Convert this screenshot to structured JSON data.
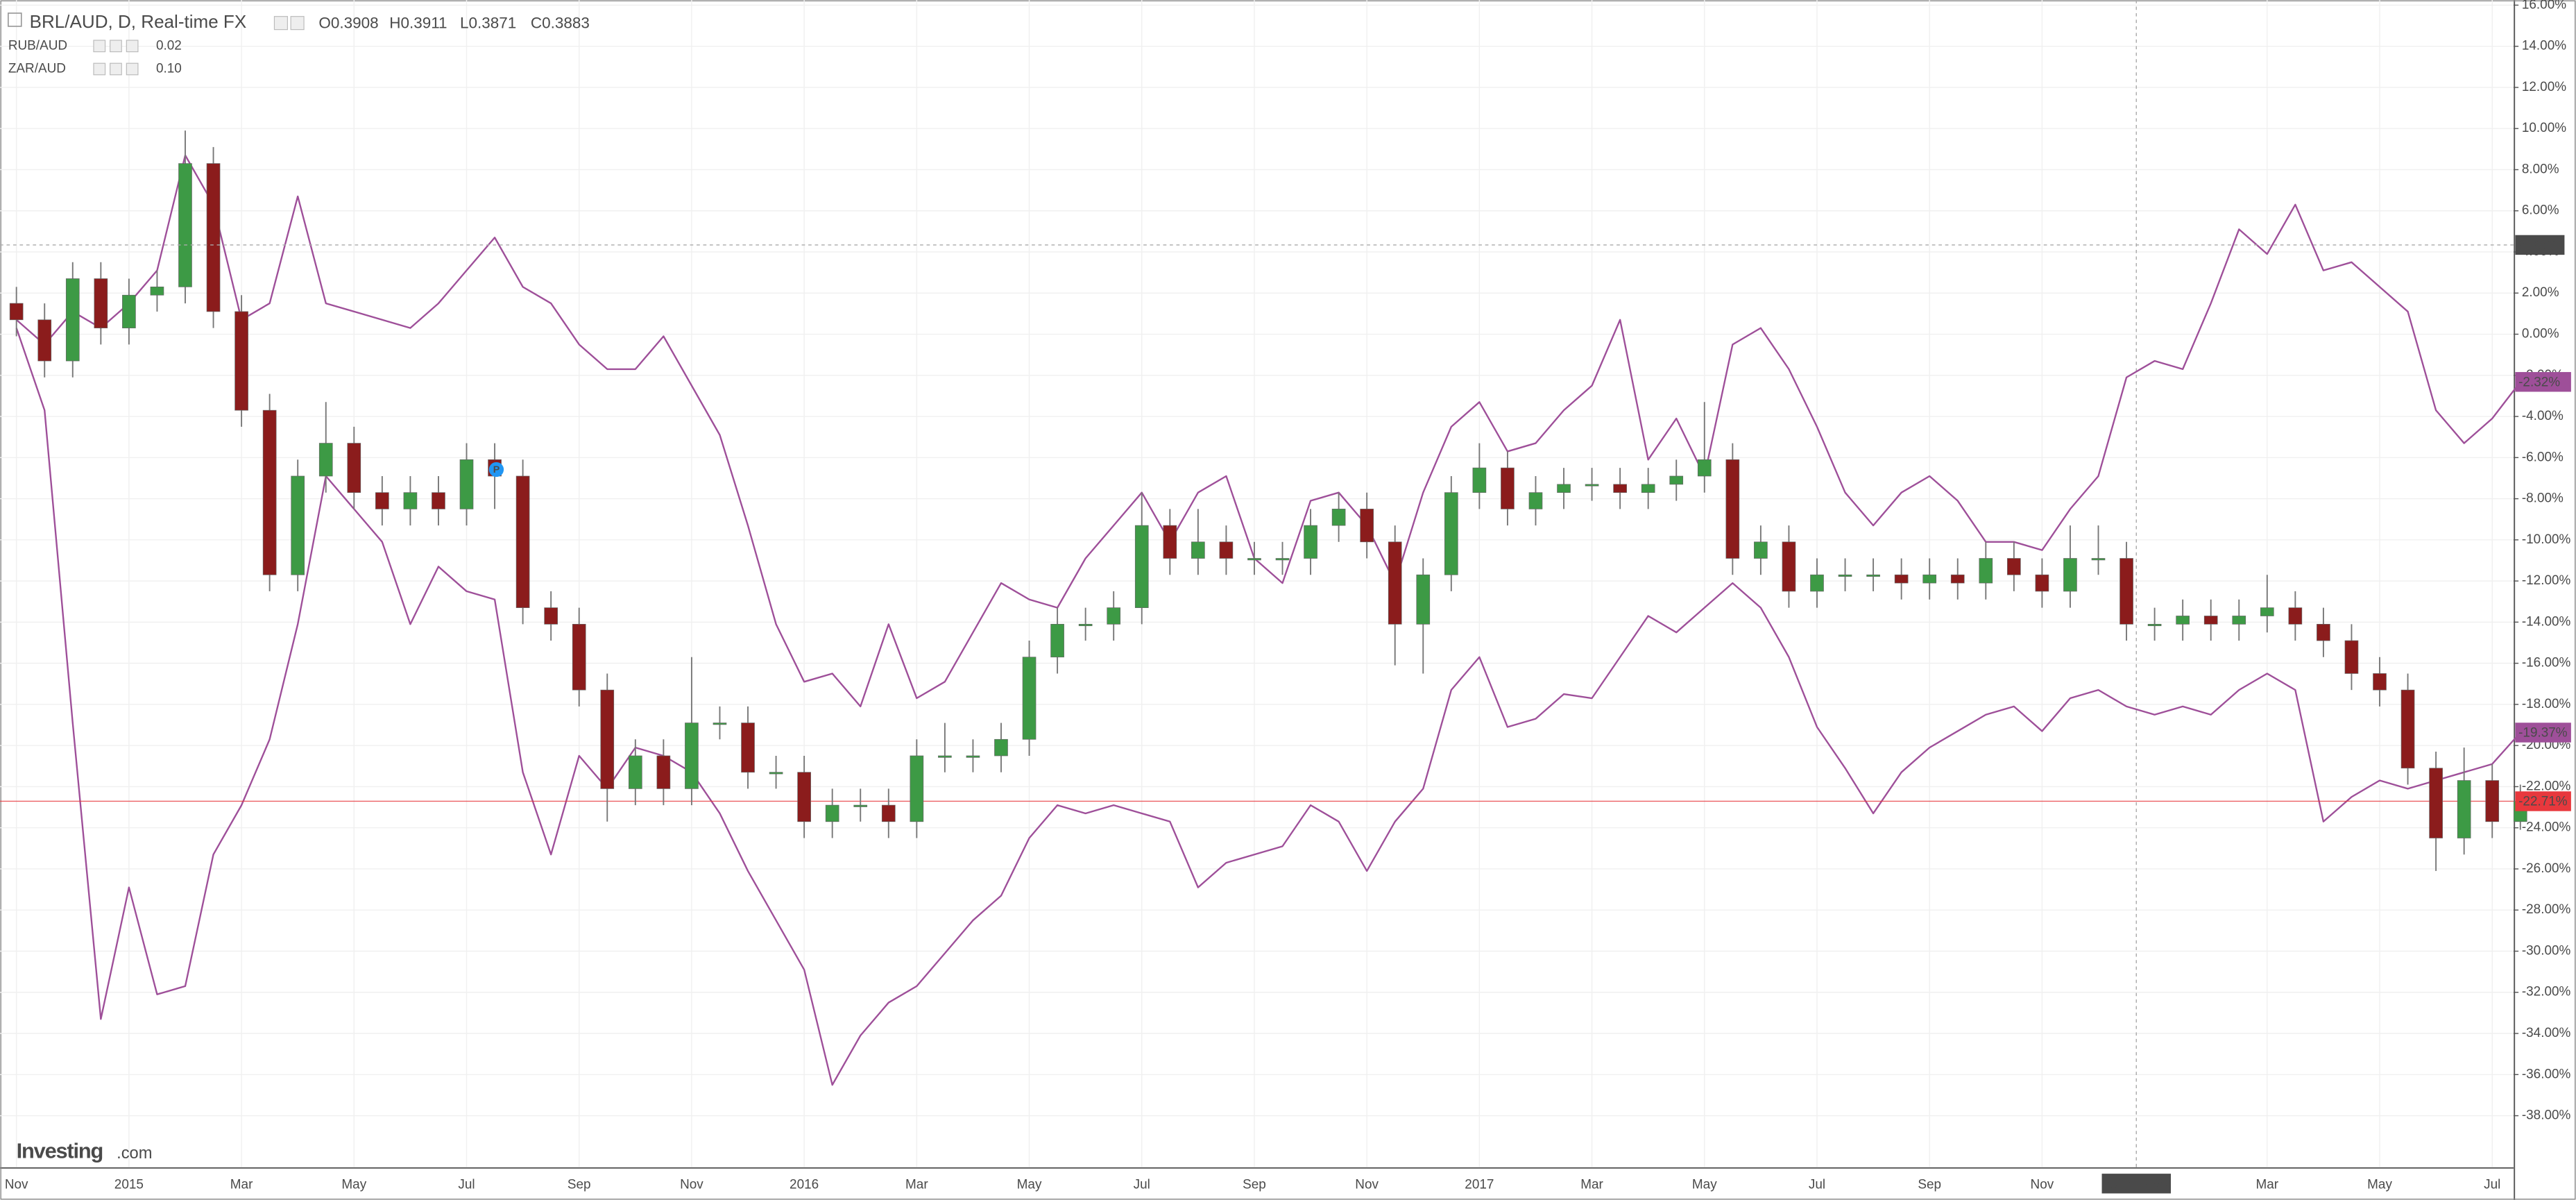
{
  "chart_data": {
    "type": "candlestick",
    "title": "BRL/AUD, D, Real-time FX",
    "ohlc_readout": [
      "O0.3908",
      "H0.3911",
      "L0.3871",
      "C0.3883"
    ],
    "crosshair_label": "4.7311",
    "event_marker": "P",
    "logo": [
      "Investing",
      ".com"
    ],
    "grid": true,
    "up_color": "#3d9a45",
    "down_color": "#8b1c1c",
    "last_label": "-22.71%",
    "last_color": "#e8383d",
    "categories": [
      "Nov",
      null,
      null,
      null,
      "2015",
      null,
      null,
      null,
      "Mar",
      null,
      null,
      null,
      "May",
      null,
      null,
      null,
      "Jul",
      null,
      null,
      null,
      "Sep",
      null,
      null,
      null,
      "Nov",
      null,
      null,
      null,
      "2016",
      null,
      null,
      null,
      "Mar",
      null,
      null,
      null,
      "May",
      null,
      null,
      null,
      "Jul",
      null,
      null,
      null,
      "Sep",
      null,
      null,
      null,
      "Nov",
      null,
      null,
      null,
      "2017",
      null,
      null,
      null,
      "Mar",
      null,
      null,
      null,
      "May",
      null,
      null,
      null,
      "Jul",
      null,
      null,
      null,
      "Sep",
      null,
      null,
      null,
      "Nov",
      null,
      null,
      "2017-12-27",
      null,
      null,
      null,
      null,
      "Mar",
      null,
      null,
      null,
      "May",
      null,
      null,
      null,
      "Jul",
      null
    ],
    "open": [
      1.5,
      0.7,
      -1.3,
      2.7,
      0.3,
      1.9,
      2.3,
      8.3,
      1.1,
      -3.7,
      -11.7,
      -6.9,
      -5.3,
      -7.7,
      -8.5,
      -7.7,
      -8.5,
      -6.1,
      -6.9,
      -13.3,
      -14.1,
      -17.3,
      -22.1,
      -20.5,
      -22.1,
      -18.9,
      -18.9,
      -21.3,
      -21.3,
      -23.7,
      -22.9,
      -22.9,
      -23.7,
      -20.5,
      -20.5,
      -20.5,
      -19.7,
      -15.7,
      -14.1,
      -14.1,
      -13.3,
      -9.3,
      -10.9,
      -10.1,
      -10.9,
      -10.9,
      -10.9,
      -9.3,
      -8.5,
      -10.1,
      -14.1,
      -11.7,
      -7.7,
      -6.5,
      -8.5,
      -7.7,
      -7.3,
      -7.3,
      -7.7,
      -7.3,
      -6.9,
      -6.1,
      -10.9,
      -10.1,
      -12.5,
      -11.7,
      -11.7,
      -11.7,
      -12.1,
      -11.7,
      -12.1,
      -10.9,
      -11.7,
      -12.5,
      -10.9,
      -10.9,
      -14.1,
      -14.1,
      -13.7,
      -14.1,
      -13.7,
      -13.3,
      -14.1,
      -14.9,
      -16.5,
      -17.3,
      -21.1,
      -24.5,
      -21.7,
      -23.7
    ],
    "high": [
      2.3,
      1.5,
      3.5,
      3.5,
      2.7,
      3.1,
      9.9,
      9.1,
      1.9,
      -2.9,
      -6.1,
      -3.3,
      -4.5,
      -6.9,
      -6.9,
      -6.9,
      -5.3,
      -5.3,
      -6.1,
      -12.5,
      -13.3,
      -16.5,
      -19.7,
      -19.7,
      -15.7,
      -18.1,
      -18.1,
      -20.5,
      -20.5,
      -22.1,
      -22.1,
      -22.1,
      -19.7,
      -18.9,
      -19.7,
      -18.9,
      -14.9,
      -13.3,
      -13.3,
      -12.5,
      -7.7,
      -8.5,
      -8.5,
      -9.3,
      -10.1,
      -10.1,
      -8.5,
      -7.7,
      -7.7,
      -9.3,
      -10.9,
      -6.9,
      -5.3,
      -5.7,
      -6.9,
      -6.5,
      -6.5,
      -6.5,
      -6.5,
      -6.1,
      -3.3,
      -5.3,
      -9.3,
      -9.3,
      -10.9,
      -10.9,
      -10.9,
      -10.9,
      -10.9,
      -10.9,
      -10.1,
      -10.1,
      -10.9,
      -9.3,
      -9.3,
      -10.1,
      -13.3,
      -12.9,
      -12.9,
      -12.9,
      -11.7,
      -12.5,
      -13.3,
      -14.1,
      -15.7,
      -16.5,
      -20.3,
      -20.1,
      -20.9,
      -21.9
    ],
    "low": [
      -0.1,
      -2.1,
      -2.1,
      -0.5,
      -0.5,
      1.1,
      1.5,
      0.3,
      -4.5,
      -12.5,
      -12.5,
      -7.7,
      -8.5,
      -9.3,
      -9.3,
      -9.3,
      -9.3,
      -8.5,
      -14.1,
      -14.9,
      -18.1,
      -23.7,
      -22.9,
      -22.9,
      -22.9,
      -19.7,
      -22.1,
      -22.1,
      -24.5,
      -24.5,
      -23.7,
      -24.5,
      -24.5,
      -21.3,
      -21.3,
      -21.3,
      -20.5,
      -16.5,
      -14.9,
      -14.9,
      -14.1,
      -11.7,
      -11.7,
      -11.7,
      -11.7,
      -11.7,
      -11.7,
      -10.1,
      -10.9,
      -16.1,
      -16.5,
      -12.5,
      -8.5,
      -9.3,
      -9.3,
      -8.5,
      -8.1,
      -8.5,
      -8.5,
      -8.1,
      -7.7,
      -11.7,
      -11.7,
      -13.3,
      -13.3,
      -12.5,
      -12.5,
      -12.9,
      -12.9,
      -12.9,
      -12.9,
      -12.5,
      -13.3,
      -13.3,
      -11.7,
      -14.9,
      -14.9,
      -14.9,
      -14.9,
      -14.9,
      -14.5,
      -14.9,
      -15.7,
      -17.3,
      -18.1,
      -21.9,
      -26.1,
      -25.3,
      -24.5,
      -24.1
    ],
    "close": [
      0.7,
      -1.3,
      2.7,
      0.3,
      1.9,
      2.3,
      8.3,
      1.1,
      -3.7,
      -11.7,
      -6.9,
      -5.3,
      -7.7,
      -8.5,
      -7.7,
      -8.5,
      -6.1,
      -6.9,
      -13.3,
      -14.1,
      -17.3,
      -22.1,
      -20.5,
      -22.1,
      -18.9,
      -18.9,
      -21.3,
      -21.3,
      -23.7,
      -22.9,
      -22.9,
      -23.7,
      -20.5,
      -20.5,
      -20.5,
      -19.7,
      -15.7,
      -14.1,
      -14.1,
      -13.3,
      -9.3,
      -10.9,
      -10.1,
      -10.9,
      -10.9,
      -10.9,
      -9.3,
      -8.5,
      -10.1,
      -14.1,
      -11.7,
      -7.7,
      -6.5,
      -8.5,
      -7.7,
      -7.3,
      -7.3,
      -7.7,
      -7.3,
      -6.9,
      -6.1,
      -10.9,
      -10.1,
      -12.5,
      -11.7,
      -11.7,
      -11.7,
      -12.1,
      -11.7,
      -12.1,
      -10.9,
      -11.7,
      -12.5,
      -10.9,
      -10.9,
      -14.1,
      -14.1,
      -13.7,
      -14.1,
      -13.7,
      -13.3,
      -14.1,
      -14.9,
      -16.5,
      -17.3,
      -21.1,
      -24.5,
      -21.7,
      -23.7,
      -22.71
    ],
    "series": [
      {
        "name": "RUB/AUD",
        "legend_value": "0.02",
        "color": "#9e4f99",
        "last_label": "-19.37%",
        "values": [
          0.3,
          -3.7,
          -18.9,
          -33.3,
          -26.9,
          -32.1,
          -31.7,
          -25.3,
          -22.9,
          -19.7,
          -14.1,
          -6.9,
          -8.5,
          -10.1,
          -14.1,
          -11.3,
          -12.5,
          -12.9,
          -21.3,
          -25.3,
          -20.5,
          -22.1,
          -20.1,
          -20.5,
          -21.3,
          -23.3,
          -26.1,
          -28.5,
          -30.9,
          -36.5,
          -34.1,
          -32.5,
          -31.7,
          -30.1,
          -28.5,
          -27.3,
          -24.5,
          -22.9,
          -23.3,
          -22.9,
          -23.3,
          -23.7,
          -26.9,
          -25.7,
          -25.3,
          -24.9,
          -22.9,
          -23.7,
          -26.1,
          -23.7,
          -22.1,
          -17.3,
          -15.7,
          -19.1,
          -18.7,
          -17.5,
          -17.7,
          -15.7,
          -13.7,
          -14.5,
          -13.3,
          -12.1,
          -13.3,
          -15.7,
          -19.1,
          -21.1,
          -23.3,
          -21.3,
          -20.1,
          -19.3,
          -18.5,
          -18.1,
          -19.3,
          -17.7,
          -17.3,
          -18.1,
          -18.5,
          -18.1,
          -18.5,
          -17.3,
          -16.5,
          -17.3,
          -23.7,
          -22.5,
          -21.7,
          -22.1,
          -21.7,
          -21.3,
          -20.9,
          -19.37
        ]
      },
      {
        "name": "ZAR/AUD",
        "legend_value": "0.10",
        "color": "#9e4f99",
        "last_label": "-2.32%",
        "values": [
          0.7,
          -0.5,
          1.1,
          0.3,
          1.5,
          3.1,
          8.7,
          6.3,
          0.7,
          1.5,
          6.7,
          1.5,
          1.1,
          0.7,
          0.3,
          1.5,
          3.1,
          4.7,
          2.3,
          1.5,
          -0.5,
          -1.7,
          -1.7,
          -0.1,
          -2.5,
          -4.9,
          -9.3,
          -14.1,
          -16.9,
          -16.5,
          -18.1,
          -14.1,
          -17.7,
          -16.9,
          -14.5,
          -12.1,
          -12.9,
          -13.3,
          -10.9,
          -9.3,
          -7.7,
          -10.1,
          -7.7,
          -6.9,
          -10.9,
          -12.1,
          -8.1,
          -7.7,
          -9.3,
          -12.1,
          -7.7,
          -4.5,
          -3.3,
          -5.7,
          -5.3,
          -3.7,
          -2.5,
          0.7,
          -6.1,
          -4.1,
          -6.9,
          -0.5,
          0.3,
          -1.7,
          -4.5,
          -7.7,
          -9.3,
          -7.7,
          -6.9,
          -8.1,
          -10.1,
          -10.1,
          -10.5,
          -8.5,
          -6.9,
          -2.1,
          -1.3,
          -1.7,
          1.5,
          5.1,
          3.9,
          6.3,
          3.1,
          3.5,
          2.3,
          1.1,
          -3.7,
          -5.3,
          -4.1,
          -2.32
        ]
      }
    ],
    "ylim": [
      -40.5,
      16.25
    ],
    "yticks": [
      {
        "value": -38,
        "label": "-38.00%"
      },
      {
        "value": -36,
        "label": "-36.00%"
      },
      {
        "value": -34,
        "label": "-34.00%"
      },
      {
        "value": -32,
        "label": "-32.00%"
      },
      {
        "value": -30,
        "label": "-30.00%"
      },
      {
        "value": -28,
        "label": "-28.00%"
      },
      {
        "value": -26,
        "label": "-26.00%"
      },
      {
        "value": -24,
        "label": "-24.00%"
      },
      {
        "value": -22,
        "label": "-22.00%"
      },
      {
        "value": -20,
        "label": "-20.00%"
      },
      {
        "value": -18,
        "label": "-18.00%"
      },
      {
        "value": -16,
        "label": "-16.00%"
      },
      {
        "value": -14,
        "label": "-14.00%"
      },
      {
        "value": -12,
        "label": "-12.00%"
      },
      {
        "value": -10,
        "label": "-10.00%"
      },
      {
        "value": -8,
        "label": "-8.00%"
      },
      {
        "value": -6,
        "label": "-6.00%"
      },
      {
        "value": -4,
        "label": "-4.00%"
      },
      {
        "value": -2,
        "label": "-2.00%"
      },
      {
        "value": 0,
        "label": "0.00%"
      },
      {
        "value": 2,
        "label": "2.00%"
      },
      {
        "value": 4,
        "label": "4.00%"
      },
      {
        "value": 6,
        "label": "6.00%"
      },
      {
        "value": 8,
        "label": "8.00%"
      },
      {
        "value": 10,
        "label": "10.00%"
      },
      {
        "value": 12,
        "label": "12.00%"
      },
      {
        "value": 14,
        "label": "14.00%"
      },
      {
        "value": 16,
        "label": "16.00%"
      }
    ]
  }
}
